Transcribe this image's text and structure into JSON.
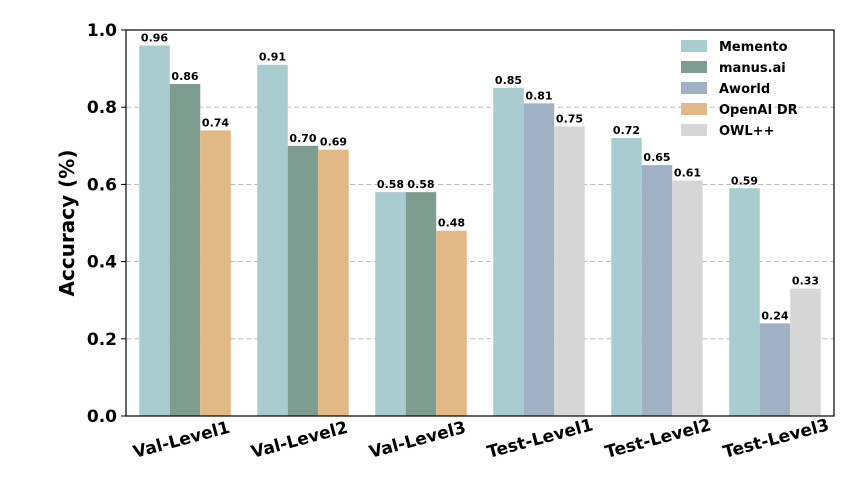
{
  "chart_data": {
    "type": "bar",
    "title": "",
    "xlabel": "",
    "ylabel": "Accuracy (%)",
    "ylim": [
      0,
      1.0
    ],
    "yticks": [
      "0.0",
      "0.2",
      "0.4",
      "0.6",
      "0.8",
      "1.0"
    ],
    "grid": "horizontal dashed",
    "legend_position": "top-right",
    "categories": [
      "Val-Level1",
      "Val-Level2",
      "Val-Level3",
      "Test-Level1",
      "Test-Level2",
      "Test-Level3"
    ],
    "series": [
      {
        "name": "Memento",
        "color": "#a8ccd0",
        "values": [
          0.96,
          0.91,
          0.58,
          0.85,
          0.72,
          0.59
        ]
      },
      {
        "name": "manus.ai",
        "color": "#7f9c90",
        "values": [
          0.86,
          0.7,
          0.58,
          null,
          null,
          null
        ]
      },
      {
        "name": "Aworld",
        "color": "#a0b1c6",
        "values": [
          null,
          null,
          null,
          0.81,
          0.65,
          0.24
        ]
      },
      {
        "name": "OpenAI DR",
        "color": "#e2b986",
        "values": [
          0.74,
          0.69,
          0.48,
          null,
          null,
          null
        ]
      },
      {
        "name": "OWL++",
        "color": "#d6d6d6",
        "values": [
          null,
          null,
          null,
          0.75,
          0.61,
          0.33
        ]
      }
    ],
    "bar_order": [
      [
        "Memento",
        "manus.ai",
        "OpenAI DR"
      ],
      [
        "Memento",
        "manus.ai",
        "OpenAI DR"
      ],
      [
        "Memento",
        "manus.ai",
        "OpenAI DR"
      ],
      [
        "Memento",
        "Aworld",
        "OWL++"
      ],
      [
        "Memento",
        "Aworld",
        "OWL++"
      ],
      [
        "Memento",
        "Aworld",
        "OWL++"
      ]
    ],
    "data_labels": [
      [
        "0.96",
        "0.86",
        "0.74"
      ],
      [
        "0.91",
        "0.70",
        "0.69"
      ],
      [
        "0.58",
        "0.58",
        "0.48"
      ],
      [
        "0.85",
        "0.81",
        "0.75"
      ],
      [
        "0.72",
        "0.65",
        "0.61"
      ],
      [
        "0.59",
        "0.24",
        "0.33"
      ]
    ]
  }
}
